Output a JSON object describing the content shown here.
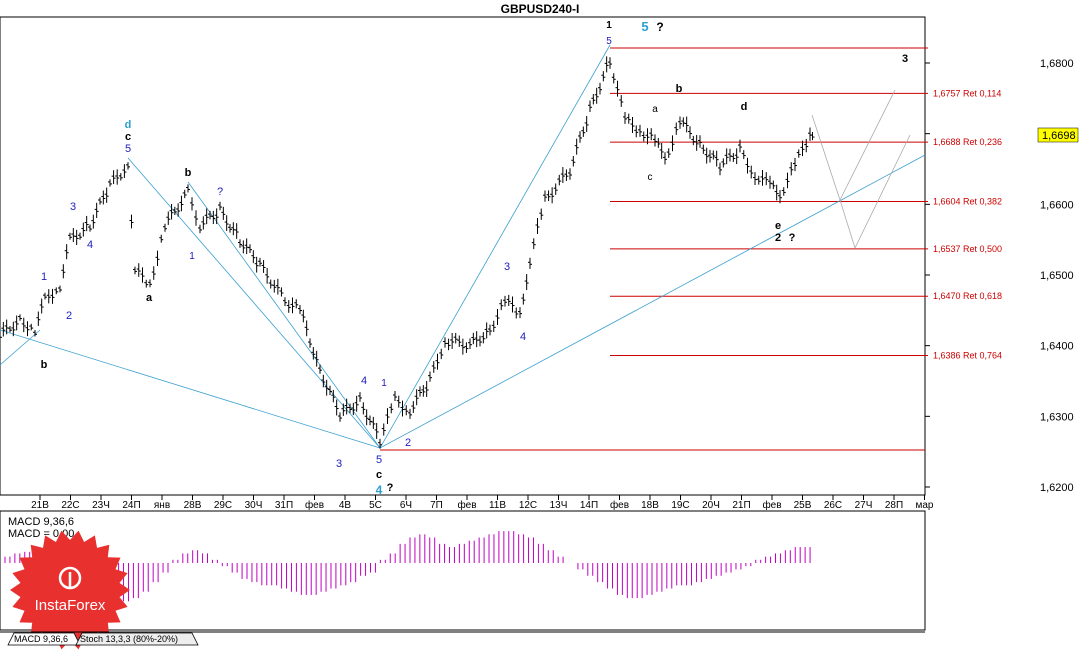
{
  "chart_data": {
    "type": "ohlc",
    "title": "GBPUSD240-I",
    "ylim": [
      1.617,
      1.685
    ],
    "yticks": [
      {
        "label": "1,6800",
        "value": 1.68
      },
      {
        "label": "1,6700",
        "value": 1.67
      },
      {
        "label": "1,6600",
        "value": 1.66
      },
      {
        "label": "1,6500",
        "value": 1.65
      },
      {
        "label": "1,6400",
        "value": 1.64
      },
      {
        "label": "1,6300",
        "value": 1.63
      },
      {
        "label": "1,6200",
        "value": 1.62
      }
    ],
    "current_price": {
      "label": "1,6698",
      "value": 1.6698
    },
    "xticks": [
      "21В",
      "22С",
      "23Ч",
      "24П",
      "янв",
      "28В",
      "29С",
      "30Ч",
      "31П",
      "фев",
      "4В",
      "5С",
      "6Ч",
      "7П",
      "фев",
      "11В",
      "12С",
      "13Ч",
      "14П",
      "фев",
      "18В",
      "19С",
      "20Ч",
      "21П",
      "фев",
      "25В",
      "26С",
      "27Ч",
      "28П",
      "мар"
    ],
    "fib_levels": [
      {
        "label": "1,6757 Ret 0,114",
        "value": 1.6757
      },
      {
        "label": "1,6688 Ret 0,236",
        "value": 1.6688
      },
      {
        "label": "1,6604 Ret 0,382",
        "value": 1.6604
      },
      {
        "label": "1,6537 Ret 0,500",
        "value": 1.6537
      },
      {
        "label": "1,6470 Ret 0,618",
        "value": 1.647
      },
      {
        "label": "1,6386 Ret 0,764",
        "value": 1.6386
      }
    ],
    "wave_labels": [
      "1",
      "5",
      "?",
      "3",
      "b",
      "a",
      "c",
      "d",
      "e",
      "2",
      "4",
      "?"
    ],
    "indicator": {
      "name": "MACD 9,36,6",
      "main": "MACD 9,36,6",
      "value_line": "MACD = 0,00",
      "histogram": [
        0.2,
        0.3,
        0.35,
        0.4,
        0.3,
        0.2,
        0.1,
        -0.1,
        -0.3,
        -0.6,
        -0.9,
        -1.1,
        -1.2,
        -1.1,
        -0.9,
        -0.6,
        -0.3,
        0.1,
        0.3,
        0.4,
        0.3,
        0.1,
        -0.1,
        -0.3,
        -0.5,
        -0.6,
        -0.7,
        -0.7,
        -0.8,
        -0.9,
        -1.0,
        -1.0,
        -0.9,
        -0.8,
        -0.7,
        -0.6,
        -0.4,
        -0.3,
        0.1,
        0.3,
        0.6,
        0.8,
        0.9,
        0.8,
        0.6,
        0.5,
        0.6,
        0.7,
        0.8,
        0.9,
        1.0,
        1.0,
        0.9,
        0.8,
        0.6,
        0.4,
        0.2,
        0.0,
        -0.2,
        -0.4,
        -0.6,
        -0.8,
        -1.0,
        -1.1,
        -1.1,
        -1.0,
        -0.9,
        -0.8,
        -0.7,
        -0.7,
        -0.6,
        -0.5,
        -0.4,
        -0.3,
        -0.2,
        -0.1,
        0.1,
        0.2,
        0.3,
        0.4,
        0.5,
        0.5
      ]
    },
    "tabs": [
      "MACD 9,36,6",
      "Stoch 13,3,3 (80%-20%)"
    ],
    "brand": "InstaForex"
  },
  "colors": {
    "candle": "#000000",
    "fib": "#cc0000",
    "trend": "#3a9fd0",
    "macd": "#c000c0",
    "wave_blue": "#2020c0",
    "wave_cyan": "#2aa0d0",
    "highlight": "#ffff00",
    "logo": "#e8312f"
  }
}
